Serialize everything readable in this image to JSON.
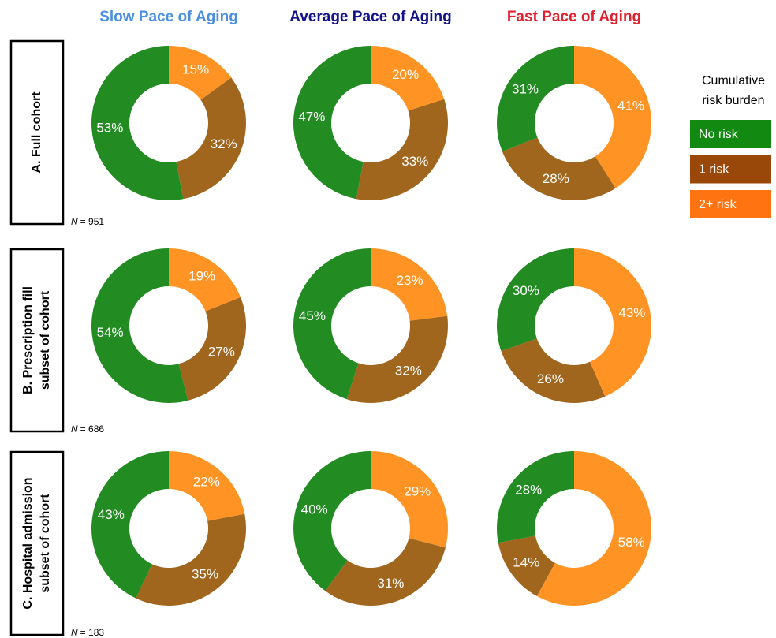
{
  "columns": [
    {
      "title": "Slow Pace of Aging",
      "color": "#4a8fe0"
    },
    {
      "title": "Average Pace of Aging",
      "color": "#12128a"
    },
    {
      "title": "Fast Pace of Aging",
      "color": "#e0202e"
    }
  ],
  "rows": [
    {
      "label": [
        "A. Full cohort"
      ],
      "n_symbol": "N",
      "n_value": "= 951"
    },
    {
      "label": [
        "B. Prescription fill",
        "subset of cohort"
      ],
      "n_symbol": "N",
      "n_value": "= 686"
    },
    {
      "label": [
        "C. Hospital admission",
        "subset of cohort"
      ],
      "n_symbol": "N",
      "n_value": "= 183"
    }
  ],
  "legend": {
    "title": [
      "Cumulative",
      "risk burden"
    ],
    "items": [
      {
        "name": "No risk",
        "color": "#128a12"
      },
      {
        "name": "1 risk",
        "color": "#9a480a"
      },
      {
        "name": "2+ risk",
        "color": "#ff7410"
      }
    ]
  },
  "chart_data": [
    {
      "type": "donut",
      "values": [
        15,
        32,
        53
      ],
      "value_labels": [
        "15%",
        "32%",
        "53%"
      ],
      "colors": [
        "#ff9424",
        "#a0661e",
        "#228b22"
      ]
    },
    {
      "type": "donut",
      "values": [
        20,
        33,
        47
      ],
      "value_labels": [
        "20%",
        "33%",
        "47%"
      ],
      "colors": [
        "#ff9424",
        "#a0661e",
        "#228b22"
      ]
    },
    {
      "type": "donut",
      "values": [
        41,
        28,
        31
      ],
      "value_labels": [
        "41%",
        "28%",
        "31%"
      ],
      "colors": [
        "#ff9424",
        "#a0661e",
        "#228b22"
      ]
    },
    {
      "type": "donut",
      "values": [
        19,
        27,
        54
      ],
      "value_labels": [
        "19%",
        "27%",
        "54%"
      ],
      "colors": [
        "#ff9424",
        "#a0661e",
        "#228b22"
      ]
    },
    {
      "type": "donut",
      "values": [
        23,
        32,
        45
      ],
      "value_labels": [
        "23%",
        "32%",
        "45%"
      ],
      "colors": [
        "#ff9424",
        "#a0661e",
        "#228b22"
      ]
    },
    {
      "type": "donut",
      "values": [
        43,
        26,
        30
      ],
      "value_labels": [
        "43%",
        "26%",
        "30%"
      ],
      "colors": [
        "#ff9424",
        "#a0661e",
        "#228b22"
      ]
    },
    {
      "type": "donut",
      "values": [
        22,
        35,
        43
      ],
      "value_labels": [
        "22%",
        "35%",
        "43%"
      ],
      "colors": [
        "#ff9424",
        "#a0661e",
        "#228b22"
      ]
    },
    {
      "type": "donut",
      "values": [
        29,
        31,
        40
      ],
      "value_labels": [
        "29%",
        "31%",
        "40%"
      ],
      "colors": [
        "#ff9424",
        "#a0661e",
        "#228b22"
      ]
    },
    {
      "type": "donut",
      "values": [
        58,
        14,
        28
      ],
      "value_labels": [
        "58%",
        "14%",
        "28%"
      ],
      "colors": [
        "#ff9424",
        "#a0661e",
        "#228b22"
      ]
    }
  ]
}
